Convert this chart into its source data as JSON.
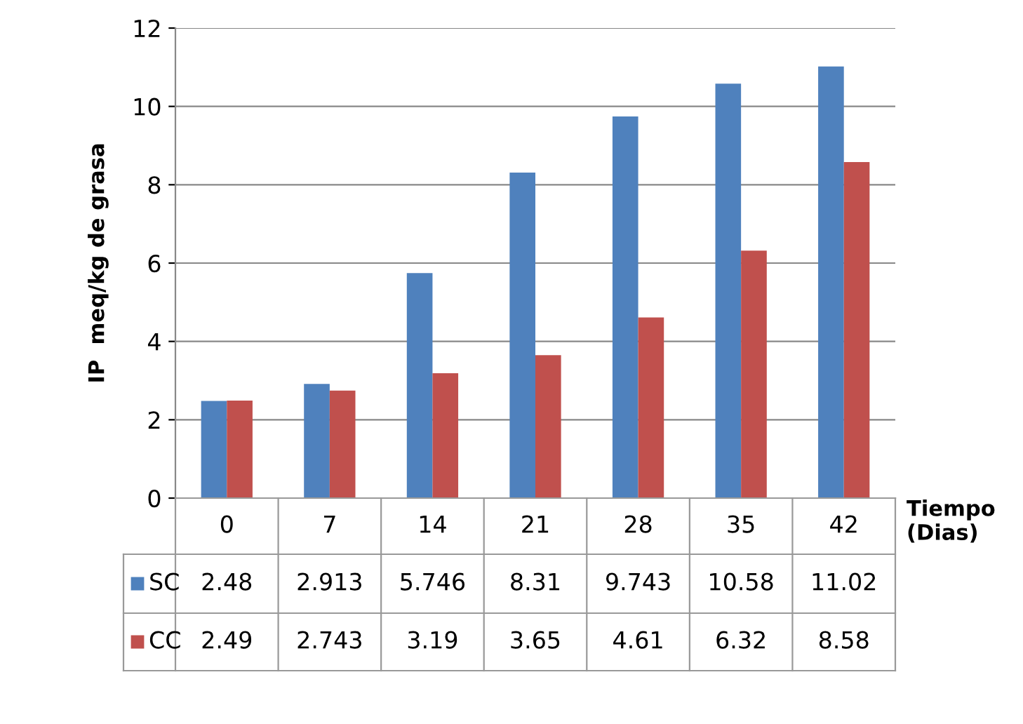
{
  "chart_data": {
    "type": "bar",
    "ylabel": "IP  meq/kg de grasa",
    "xlabel": "Tiempo\n(Dias)",
    "categories": [
      "0",
      "7",
      "14",
      "21",
      "28",
      "35",
      "42"
    ],
    "series": [
      {
        "name": "SC",
        "color": "#4f81bd",
        "values": [
          2.48,
          2.913,
          5.746,
          8.31,
          9.743,
          10.58,
          11.02
        ]
      },
      {
        "name": "CC",
        "color": "#c0504d",
        "values": [
          2.49,
          2.743,
          3.19,
          3.65,
          4.61,
          6.32,
          8.58
        ]
      }
    ],
    "ylim": [
      0,
      12
    ],
    "yticks": [
      0,
      2,
      4,
      6,
      8,
      10,
      12
    ],
    "grid": "y",
    "legend": "bottom",
    "data_labels": true
  }
}
